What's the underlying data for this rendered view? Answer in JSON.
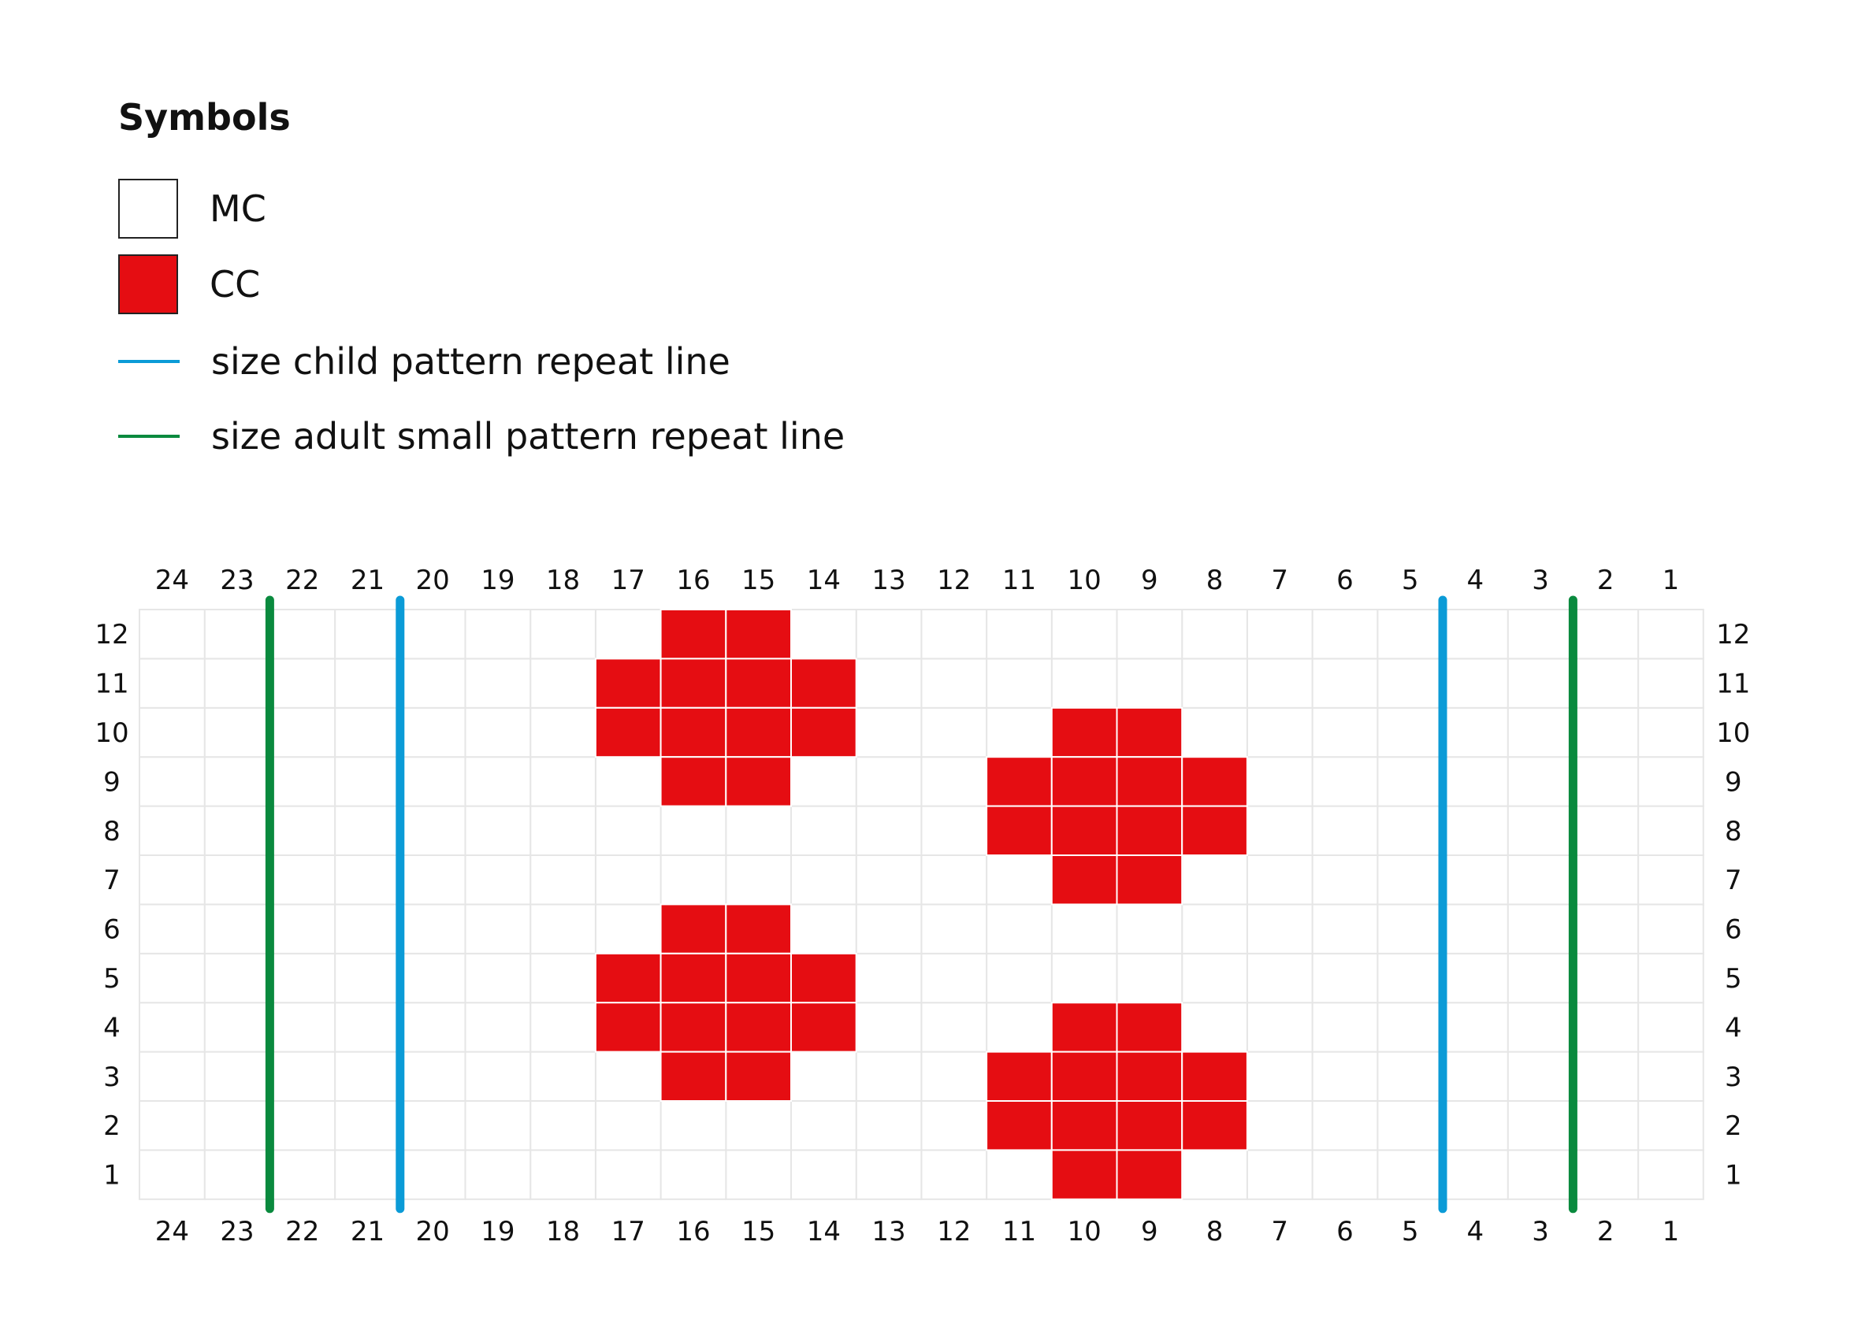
{
  "legend": {
    "title": "Symbols",
    "items": [
      {
        "label": "MC",
        "kind": "swatch",
        "color": "#ffffff"
      },
      {
        "label": "CC",
        "kind": "swatch",
        "color": "#e50d12"
      },
      {
        "label": "size child pattern repeat line",
        "kind": "line",
        "color": "#0b9bd7"
      },
      {
        "label": "size adult small pattern repeat line",
        "kind": "line",
        "color": "#0a8a3e"
      }
    ]
  },
  "colors": {
    "mc": "#ffffff",
    "cc": "#e50d12",
    "grid": "#e6e6e6",
    "child_line": "#0b9bd7",
    "adult_line": "#0a8a3e"
  },
  "chart_data": {
    "type": "heatmap",
    "stitch_labels": [
      "24",
      "23",
      "22",
      "21",
      "20",
      "19",
      "18",
      "17",
      "16",
      "15",
      "14",
      "13",
      "12",
      "11",
      "10",
      "9",
      "8",
      "7",
      "6",
      "5",
      "4",
      "3",
      "2",
      "1"
    ],
    "row_labels": [
      "12",
      "11",
      "10",
      "9",
      "8",
      "7",
      "6",
      "5",
      "4",
      "3",
      "2",
      "1"
    ],
    "cc_cells": [
      {
        "row": 12,
        "stitches": [
          16,
          15
        ]
      },
      {
        "row": 11,
        "stitches": [
          17,
          16,
          15,
          14
        ]
      },
      {
        "row": 10,
        "stitches": [
          17,
          16,
          15,
          14,
          10,
          9
        ]
      },
      {
        "row": 9,
        "stitches": [
          16,
          15,
          11,
          10,
          9,
          8
        ]
      },
      {
        "row": 8,
        "stitches": [
          11,
          10,
          9,
          8
        ]
      },
      {
        "row": 7,
        "stitches": [
          10,
          9
        ]
      },
      {
        "row": 6,
        "stitches": [
          16,
          15
        ]
      },
      {
        "row": 5,
        "stitches": [
          17,
          16,
          15,
          14
        ]
      },
      {
        "row": 4,
        "stitches": [
          17,
          16,
          15,
          14,
          10,
          9
        ]
      },
      {
        "row": 3,
        "stitches": [
          16,
          15,
          11,
          10,
          9,
          8
        ]
      },
      {
        "row": 2,
        "stitches": [
          11,
          10,
          9,
          8
        ]
      },
      {
        "row": 1,
        "stitches": [
          10,
          9
        ]
      }
    ],
    "repeat_lines": {
      "child": {
        "between_stitches": [
          [
            21,
            20
          ],
          [
            5,
            4
          ]
        ]
      },
      "adult_small": {
        "between_stitches": [
          [
            23,
            22
          ],
          [
            3,
            2
          ]
        ]
      }
    }
  }
}
